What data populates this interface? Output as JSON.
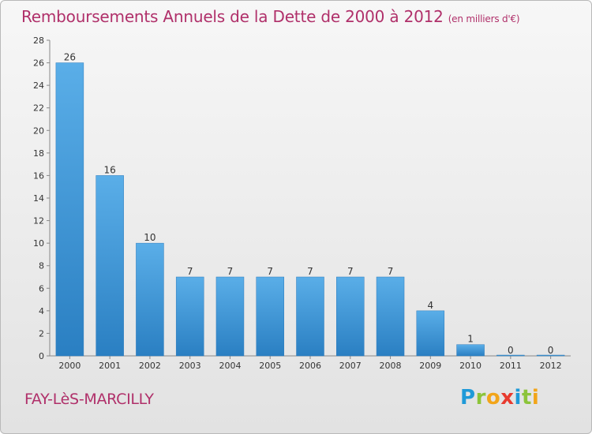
{
  "header": {
    "title": "Remboursements Annuels de la Dette de 2000 à 2012",
    "unit": "(en milliers d'€)"
  },
  "footer": {
    "commune": "FAY-LèS-MARCILLY",
    "logo_letters": [
      "P",
      "r",
      "o",
      "x",
      "i",
      "t",
      "i"
    ]
  },
  "chart_data": {
    "type": "bar",
    "title": "Remboursements Annuels de la Dette de 2000 à 2012",
    "subtitle": "(en milliers d'€)",
    "xlabel": "",
    "ylabel": "",
    "categories": [
      "2000",
      "2001",
      "2002",
      "2003",
      "2004",
      "2005",
      "2006",
      "2007",
      "2008",
      "2009",
      "2010",
      "2011",
      "2012"
    ],
    "values": [
      26,
      16,
      10,
      7,
      7,
      7,
      7,
      7,
      7,
      4,
      1,
      0,
      0
    ],
    "ylim": [
      0,
      28
    ],
    "yticks": [
      0,
      2,
      4,
      6,
      8,
      10,
      12,
      14,
      16,
      18,
      20,
      22,
      24,
      26,
      28
    ],
    "grid": false,
    "legend": "none",
    "bar_color": "#3f97d6"
  }
}
